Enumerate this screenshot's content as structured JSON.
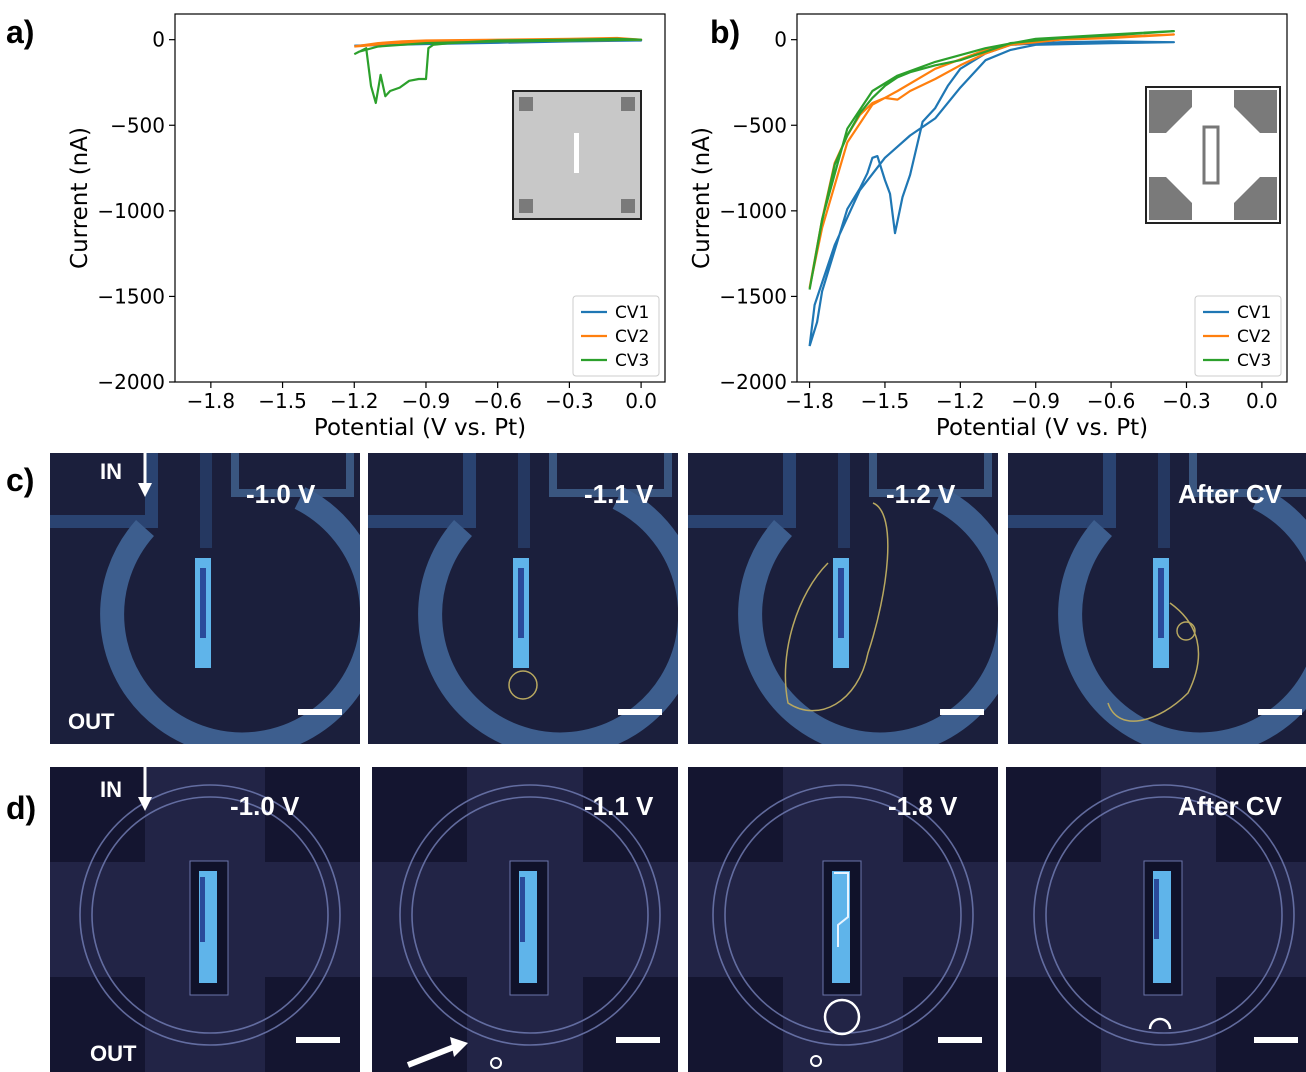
{
  "panels": {
    "a": "a)",
    "b": "b)",
    "c": "c)",
    "d": "d)"
  },
  "chart_data": [
    {
      "id": "a",
      "type": "line",
      "title": "",
      "xlabel": "Potential (V vs. Pt)",
      "ylabel": "Current (nA)",
      "xlim": [
        -1.95,
        0.1
      ],
      "ylim": [
        -2000,
        150
      ],
      "xticks": [
        -1.8,
        -1.5,
        -1.2,
        -0.9,
        -0.6,
        -0.3,
        0.0
      ],
      "xtick_labels": [
        "−1.8",
        "−1.5",
        "−1.2",
        "−0.9",
        "−0.6",
        "−0.3",
        "0.0"
      ],
      "yticks": [
        0,
        -500,
        -1000,
        -1500,
        -2000
      ],
      "ytick_labels": [
        "0",
        "−500",
        "−1000",
        "−1500",
        "−2000"
      ],
      "legend_position": "lower-right",
      "inset": "square-pad",
      "series": [
        {
          "name": "CV1",
          "color": "#1f77b4",
          "x": [
            -1.2,
            -1.1,
            -0.9,
            -0.6,
            -0.3,
            0.0,
            -0.3,
            -0.6,
            -0.9,
            -1.1,
            -1.2
          ],
          "y": [
            -35,
            -30,
            -22,
            -15,
            -10,
            -5,
            -10,
            -18,
            -25,
            -32,
            -35
          ]
        },
        {
          "name": "CV2",
          "color": "#ff7f0e",
          "x": [
            -1.2,
            -1.1,
            -1.0,
            -0.9,
            -0.6,
            -0.3,
            -0.1,
            0.0,
            -0.3,
            -0.6,
            -0.9,
            -1.05,
            -1.15,
            -1.2
          ],
          "y": [
            -40,
            -20,
            -10,
            -5,
            0,
            5,
            10,
            0,
            -5,
            -10,
            -15,
            -20,
            -35,
            -40
          ]
        },
        {
          "name": "CV3",
          "color": "#2ca02c",
          "x": [
            -1.2,
            -1.15,
            -1.13,
            -1.11,
            -1.09,
            -1.07,
            -1.05,
            -1.01,
            -0.97,
            -0.93,
            -0.9,
            -0.89,
            -0.87,
            -0.8,
            -0.6,
            -0.3,
            -0.1,
            0.0,
            -0.3,
            -0.6,
            -0.9,
            -1.0,
            -1.1,
            -1.18,
            -1.2
          ],
          "y": [
            -85,
            -50,
            -270,
            -370,
            -205,
            -330,
            -300,
            -280,
            -240,
            -230,
            -230,
            -50,
            -30,
            -20,
            -5,
            0,
            5,
            0,
            -5,
            -10,
            -20,
            -30,
            -40,
            -70,
            -85
          ]
        }
      ]
    },
    {
      "id": "b",
      "type": "line",
      "title": "",
      "xlabel": "Potential (V vs. Pt)",
      "ylabel": "Current (nA)",
      "xlim": [
        -1.85,
        0.1
      ],
      "ylim": [
        -2000,
        150
      ],
      "xticks": [
        -1.8,
        -1.5,
        -1.2,
        -0.9,
        -0.6,
        -0.3,
        0.0
      ],
      "xtick_labels": [
        "−1.8",
        "−1.5",
        "−1.2",
        "−0.9",
        "−0.6",
        "−0.3",
        "0.0"
      ],
      "yticks": [
        0,
        -500,
        -1000,
        -1500,
        -2000
      ],
      "ytick_labels": [
        "0",
        "−500",
        "−1000",
        "−1500",
        "−2000"
      ],
      "legend_position": "lower-right",
      "inset": "cross-pad",
      "series": [
        {
          "name": "CV1",
          "color": "#1f77b4",
          "x": [
            -1.8,
            -1.77,
            -1.75,
            -1.7,
            -1.65,
            -1.6,
            -1.57,
            -1.55,
            -1.53,
            -1.5,
            -1.48,
            -1.46,
            -1.43,
            -1.4,
            -1.35,
            -1.3,
            -1.25,
            -1.2,
            -1.1,
            -1.0,
            -0.8,
            -0.6,
            -0.35,
            -0.6,
            -0.9,
            -1.0,
            -1.1,
            -1.2,
            -1.3,
            -1.4,
            -1.5,
            -1.6,
            -1.7,
            -1.78,
            -1.8
          ],
          "y": [
            -1790,
            -1650,
            -1470,
            -1230,
            -990,
            -870,
            -780,
            -690,
            -680,
            -820,
            -900,
            -1130,
            -920,
            -790,
            -480,
            -400,
            -270,
            -170,
            -80,
            -30,
            -15,
            -10,
            -15,
            -20,
            -30,
            -60,
            -120,
            -280,
            -460,
            -560,
            -690,
            -880,
            -1200,
            -1550,
            -1790
          ]
        },
        {
          "name": "CV2",
          "color": "#ff7f0e",
          "x": [
            -1.8,
            -1.75,
            -1.7,
            -1.65,
            -1.6,
            -1.55,
            -1.5,
            -1.45,
            -1.4,
            -1.3,
            -1.2,
            -1.1,
            -1.0,
            -0.8,
            -0.6,
            -0.35,
            -0.6,
            -0.9,
            -1.1,
            -1.3,
            -1.45,
            -1.55,
            -1.65,
            -1.75,
            -1.8
          ],
          "y": [
            -1450,
            -1050,
            -720,
            -560,
            -440,
            -370,
            -340,
            -350,
            -300,
            -230,
            -150,
            -80,
            -30,
            0,
            10,
            30,
            15,
            0,
            -60,
            -170,
            -300,
            -380,
            -600,
            -1100,
            -1450
          ]
        },
        {
          "name": "CV3",
          "color": "#2ca02c",
          "x": [
            -1.8,
            -1.75,
            -1.7,
            -1.65,
            -1.6,
            -1.55,
            -1.5,
            -1.45,
            -1.4,
            -1.3,
            -1.2,
            -1.1,
            -1.0,
            -0.8,
            -0.6,
            -0.35,
            -0.6,
            -0.9,
            -1.1,
            -1.3,
            -1.45,
            -1.55,
            -1.65,
            -1.75,
            -1.8
          ],
          "y": [
            -1460,
            -1060,
            -730,
            -560,
            -430,
            -340,
            -270,
            -220,
            -190,
            -150,
            -120,
            -70,
            -20,
            10,
            25,
            50,
            30,
            5,
            -50,
            -130,
            -210,
            -300,
            -520,
            -1050,
            -1460
          ]
        }
      ]
    }
  ],
  "row_c": {
    "in_label": "IN",
    "out_label": "OUT",
    "frames": [
      {
        "label": "-1.0 V"
      },
      {
        "label": "-1.1 V"
      },
      {
        "label": "-1.2 V"
      },
      {
        "label": "After CV"
      }
    ]
  },
  "row_d": {
    "in_label": "IN",
    "out_label": "OUT",
    "frames": [
      {
        "label": "-1.0 V"
      },
      {
        "label": "-1.1 V"
      },
      {
        "label": "-1.8 V"
      },
      {
        "label": "After CV"
      }
    ]
  }
}
